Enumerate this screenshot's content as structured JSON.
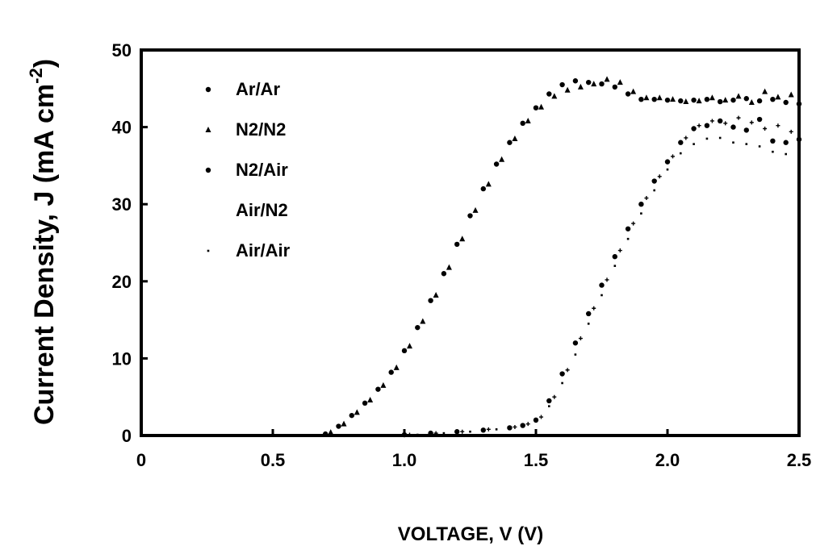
{
  "chart_data": {
    "type": "scatter",
    "title": "",
    "xlabel": "VOLTAGE, V (V)",
    "ylabel_main": "Current Density, J (mA cm",
    "ylabel_sup": "-2",
    "ylabel_close": ")",
    "xlim": [
      0,
      2.5
    ],
    "ylim": [
      0,
      50
    ],
    "x_ticks": [
      {
        "value": 0,
        "label": "0"
      },
      {
        "value": 0.5,
        "label": "0.5"
      },
      {
        "value": 1.0,
        "label": "1.0"
      },
      {
        "value": 1.5,
        "label": "1.5"
      },
      {
        "value": 2.0,
        "label": "2.0"
      },
      {
        "value": 2.5,
        "label": "2.5"
      }
    ],
    "y_ticks": [
      {
        "value": 0,
        "label": "0"
      },
      {
        "value": 10,
        "label": "10"
      },
      {
        "value": 20,
        "label": "20"
      },
      {
        "value": 30,
        "label": "30"
      },
      {
        "value": 40,
        "label": "40"
      },
      {
        "value": 50,
        "label": "50"
      }
    ],
    "grid": false,
    "legend_position": "top-left",
    "series": [
      {
        "name": "Ar/Ar",
        "marker": "dot",
        "color": "#000000",
        "x": [
          0.7,
          0.75,
          0.8,
          0.85,
          0.9,
          0.95,
          1.0,
          1.05,
          1.1,
          1.15,
          1.2,
          1.25,
          1.3,
          1.35,
          1.4,
          1.45,
          1.5,
          1.55,
          1.6,
          1.65,
          1.7,
          1.75,
          1.8,
          1.85,
          1.9,
          1.95,
          2.0,
          2.05,
          2.1,
          2.15,
          2.2,
          2.25,
          2.3,
          2.35,
          2.4,
          2.45,
          2.5
        ],
        "y": [
          0.2,
          1.2,
          2.6,
          4.2,
          6.0,
          8.2,
          11.0,
          14.0,
          17.5,
          21.0,
          24.8,
          28.5,
          32.0,
          35.2,
          38.0,
          40.5,
          42.5,
          44.3,
          45.5,
          46.0,
          45.8,
          45.6,
          45.2,
          44.3,
          43.6,
          43.6,
          43.5,
          43.4,
          43.5,
          43.6,
          43.3,
          43.5,
          43.7,
          43.4,
          43.6,
          43.2,
          43.0
        ]
      },
      {
        "name": "N2/N2",
        "marker": "tri",
        "color": "#000000",
        "x": [
          0.72,
          0.77,
          0.82,
          0.87,
          0.92,
          0.97,
          1.02,
          1.07,
          1.12,
          1.17,
          1.22,
          1.27,
          1.32,
          1.37,
          1.42,
          1.47,
          1.52,
          1.57,
          1.62,
          1.67,
          1.72,
          1.77,
          1.82,
          1.87,
          1.92,
          1.97,
          2.02,
          2.07,
          2.12,
          2.17,
          2.22,
          2.27,
          2.32,
          2.37,
          2.42,
          2.47
        ],
        "y": [
          0.4,
          1.5,
          3.0,
          4.6,
          6.5,
          8.8,
          11.6,
          14.8,
          18.2,
          21.8,
          25.5,
          29.2,
          32.6,
          35.8,
          38.5,
          40.8,
          42.6,
          44.0,
          44.8,
          45.2,
          45.6,
          46.2,
          45.8,
          44.6,
          43.8,
          43.8,
          43.6,
          43.3,
          43.4,
          43.8,
          43.5,
          44.0,
          43.2,
          44.6,
          43.9,
          44.2
        ]
      },
      {
        "name": "N2/Air",
        "marker": "dot",
        "color": "#000000",
        "x": [
          1.0,
          1.1,
          1.2,
          1.3,
          1.4,
          1.45,
          1.5,
          1.55,
          1.6,
          1.65,
          1.7,
          1.75,
          1.8,
          1.85,
          1.9,
          1.95,
          2.0,
          2.05,
          2.1,
          2.15,
          2.2,
          2.25,
          2.3,
          2.35,
          2.4,
          2.45,
          2.5
        ],
        "y": [
          0.1,
          0.3,
          0.5,
          0.7,
          1.0,
          1.3,
          2.0,
          4.5,
          8.0,
          12.0,
          15.8,
          19.5,
          23.2,
          26.8,
          30.0,
          33.0,
          35.5,
          38.0,
          39.8,
          40.2,
          40.8,
          40.0,
          39.6,
          41.0,
          38.2,
          38.0,
          38.4
        ]
      },
      {
        "name": "Air/N2",
        "marker": "none",
        "color": "#000000",
        "x": [
          1.02,
          1.12,
          1.22,
          1.32,
          1.42,
          1.47,
          1.52,
          1.57,
          1.62,
          1.67,
          1.72,
          1.77,
          1.82,
          1.87,
          1.92,
          1.97,
          2.02,
          2.07,
          2.12,
          2.17,
          2.22,
          2.27,
          2.32,
          2.37,
          2.42,
          2.47
        ],
        "y": [
          0.1,
          0.3,
          0.5,
          0.8,
          1.1,
          1.5,
          2.4,
          5.0,
          8.5,
          12.6,
          16.5,
          20.2,
          24.0,
          27.5,
          30.8,
          33.6,
          36.2,
          38.6,
          40.2,
          40.8,
          40.5,
          41.2,
          40.6,
          39.8,
          40.2,
          39.4
        ]
      },
      {
        "name": "Air/Air",
        "marker": "small",
        "color": "#000000",
        "x": [
          1.05,
          1.15,
          1.25,
          1.35,
          1.45,
          1.5,
          1.55,
          1.6,
          1.65,
          1.7,
          1.75,
          1.8,
          1.85,
          1.9,
          1.95,
          2.0,
          2.05,
          2.1,
          2.15,
          2.2,
          2.25,
          2.3,
          2.35,
          2.4,
          2.45,
          2.5
        ],
        "y": [
          0.1,
          0.3,
          0.5,
          0.8,
          1.2,
          1.8,
          3.8,
          6.8,
          10.5,
          14.5,
          18.2,
          22.0,
          25.5,
          28.8,
          31.8,
          34.5,
          36.6,
          37.8,
          38.5,
          38.6,
          38.0,
          37.8,
          37.5,
          36.8,
          36.5,
          36.0
        ]
      }
    ]
  }
}
